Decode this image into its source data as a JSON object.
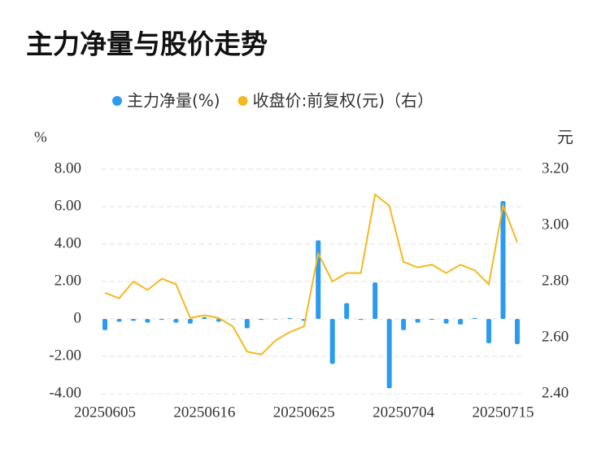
{
  "chart_data": {
    "type": "bar",
    "title": "主力净量与股价走势",
    "y_label": "%",
    "y2_label": "元",
    "categories": [
      "20250605",
      null,
      null,
      null,
      null,
      null,
      null,
      "20250616",
      null,
      null,
      null,
      null,
      null,
      null,
      "20250625",
      null,
      null,
      null,
      null,
      null,
      null,
      "20250704",
      null,
      null,
      null,
      null,
      null,
      null,
      "20250715",
      null
    ],
    "series": [
      {
        "name": "主力净量(%)",
        "type": "bar",
        "color": "#2a9bef",
        "values": [
          -0.6,
          -0.15,
          -0.1,
          -0.2,
          -0.05,
          -0.2,
          -0.25,
          0.1,
          -0.15,
          0,
          -0.5,
          -0.05,
          0,
          0.05,
          -0.1,
          4.2,
          -2.4,
          0.85,
          -0.05,
          1.95,
          -3.7,
          -0.6,
          -0.2,
          -0.05,
          -0.25,
          -0.3,
          0.05,
          -1.3,
          6.3,
          -1.35
        ]
      },
      {
        "name": "收盘价:前复权(元)（右）",
        "type": "line",
        "axis": "y2",
        "color": "#f5b820",
        "values": [
          2.76,
          2.74,
          2.8,
          2.77,
          2.81,
          2.79,
          2.67,
          2.68,
          2.67,
          2.64,
          2.55,
          2.54,
          2.59,
          2.62,
          2.64,
          2.9,
          2.8,
          2.83,
          2.83,
          3.11,
          3.07,
          2.87,
          2.85,
          2.86,
          2.83,
          2.86,
          2.84,
          2.79,
          3.07,
          2.94
        ]
      }
    ],
    "ylim": [
      -4,
      8
    ],
    "yticks": [
      {
        "value": -4,
        "label": "-4.00"
      },
      {
        "value": -2,
        "label": "-2.00"
      },
      0,
      {
        "value": 2,
        "label": "2.00"
      },
      {
        "value": 4,
        "label": "4.00"
      },
      {
        "value": 6,
        "label": "6.00"
      },
      {
        "value": 8,
        "label": "8.00"
      }
    ],
    "y2lim": [
      2.4,
      3.2
    ],
    "y2ticks": [
      {
        "value": 2.4,
        "label": "2.40"
      },
      {
        "value": 2.6,
        "label": "2.60"
      },
      {
        "value": 2.8,
        "label": "2.80"
      },
      {
        "value": 3.0,
        "label": "3.00"
      },
      {
        "value": 3.2,
        "label": "3.20"
      }
    ],
    "grid": true,
    "legend": "top"
  }
}
